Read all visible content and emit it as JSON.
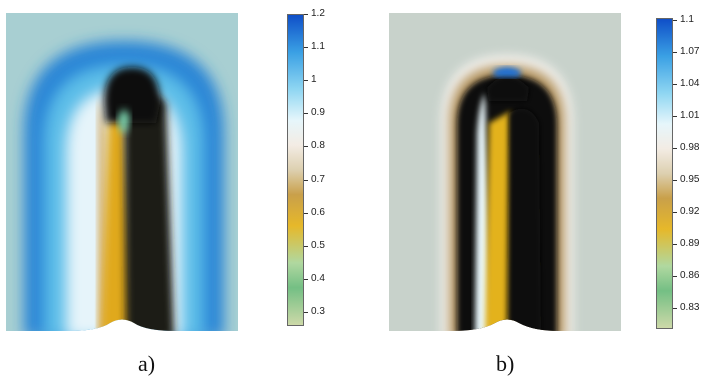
{
  "chart_data": [
    {
      "type": "heatmap",
      "panel_label": "a)",
      "colorbar": {
        "min": 0.26,
        "max": 1.2,
        "ticks": [
          "1.2",
          "1.1",
          "1",
          "0.9",
          "0.8",
          "0.7",
          "0.6",
          "0.5",
          "0.4",
          "0.3"
        ],
        "tick_values": [
          1.2,
          1.1,
          1.0,
          0.9,
          0.8,
          0.7,
          0.6,
          0.5,
          0.4,
          0.3
        ],
        "colormap": [
          "#cdd9a8",
          "#5ab26a",
          "#b0d8a0",
          "#e6b82a",
          "#c49a1c",
          "#d8c8a0",
          "#f0e8dc",
          "#e8f8ff",
          "#6ec8ee",
          "#1f88d8",
          "#0f4fc8"
        ]
      }
    },
    {
      "type": "heatmap",
      "panel_label": "b)",
      "colorbar": {
        "min": 0.82,
        "max": 1.11,
        "ticks": [
          "1.1",
          "1.07",
          "1.04",
          "1.01",
          "0.98",
          "0.95",
          "0.92",
          "0.89",
          "0.86",
          "0.83"
        ],
        "tick_values": [
          1.1,
          1.07,
          1.04,
          1.01,
          0.98,
          0.95,
          0.92,
          0.89,
          0.86,
          0.83
        ],
        "colormap": [
          "#cdd9a8",
          "#5ab26a",
          "#b0d8a0",
          "#e6b82a",
          "#c49a1c",
          "#d8c8a0",
          "#f0e8dc",
          "#e8f8ff",
          "#6ec8ee",
          "#1f88d8",
          "#0f4fc8"
        ]
      }
    }
  ]
}
